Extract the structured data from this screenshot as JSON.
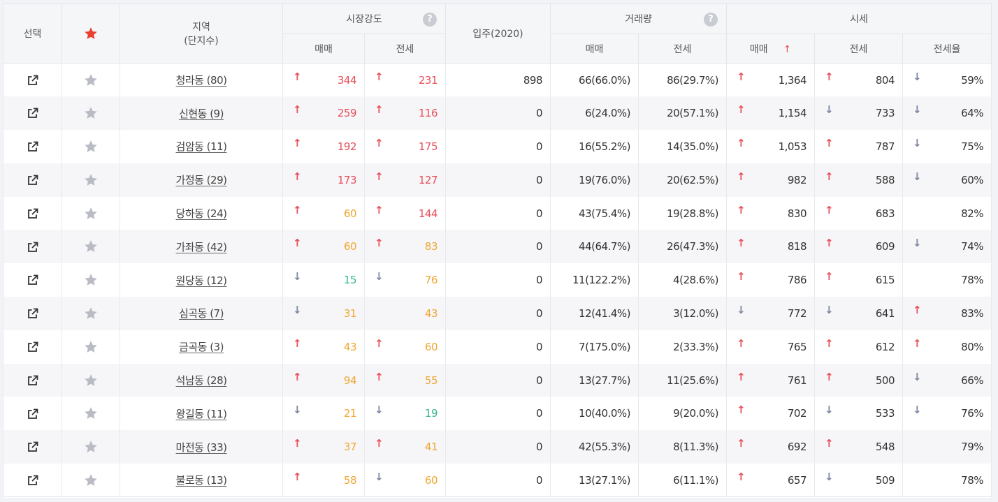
{
  "headers": {
    "select": "선택",
    "region_line1": "지역",
    "region_line2": "(단지수)",
    "market_strength": "시장강도",
    "move_in": "입주(2020)",
    "volume": "거래량",
    "price": "시세",
    "buy": "매매",
    "jeonse": "전세",
    "jeonse_rate": "전세율",
    "help": "?",
    "sort_arrow": "↑"
  },
  "colors": {
    "up": "#e84f5a",
    "down": "#7d86a0",
    "red": "#e84f5a",
    "orange": "#f0a630",
    "green": "#33b98a"
  },
  "rows": [
    {
      "region": "청라동 (80)",
      "ms_buy": {
        "dir": "up",
        "val": "344",
        "color": "red"
      },
      "ms_jeonse": {
        "dir": "up",
        "val": "231",
        "color": "red"
      },
      "move_in": "898",
      "vol_buy": "66(66.0%)",
      "vol_jeonse": "86(29.7%)",
      "price_buy": {
        "dir": "up",
        "val": "1,364"
      },
      "price_jeonse": {
        "dir": "up",
        "val": "804"
      },
      "rate": {
        "dir": "down",
        "val": "59%"
      }
    },
    {
      "region": "신현동 (9)",
      "ms_buy": {
        "dir": "up",
        "val": "259",
        "color": "red"
      },
      "ms_jeonse": {
        "dir": "up",
        "val": "116",
        "color": "red"
      },
      "move_in": "0",
      "vol_buy": "6(24.0%)",
      "vol_jeonse": "20(57.1%)",
      "price_buy": {
        "dir": "up",
        "val": "1,154"
      },
      "price_jeonse": {
        "dir": "down",
        "val": "733"
      },
      "rate": {
        "dir": "down",
        "val": "64%"
      }
    },
    {
      "region": "검암동 (11)",
      "ms_buy": {
        "dir": "up",
        "val": "192",
        "color": "red"
      },
      "ms_jeonse": {
        "dir": "up",
        "val": "175",
        "color": "red"
      },
      "move_in": "0",
      "vol_buy": "16(55.2%)",
      "vol_jeonse": "14(35.0%)",
      "price_buy": {
        "dir": "up",
        "val": "1,053"
      },
      "price_jeonse": {
        "dir": "up",
        "val": "787"
      },
      "rate": {
        "dir": "down",
        "val": "75%"
      }
    },
    {
      "region": "가정동 (29)",
      "ms_buy": {
        "dir": "up",
        "val": "173",
        "color": "red"
      },
      "ms_jeonse": {
        "dir": "up",
        "val": "127",
        "color": "red"
      },
      "move_in": "0",
      "vol_buy": "19(76.0%)",
      "vol_jeonse": "20(62.5%)",
      "price_buy": {
        "dir": "up",
        "val": "982"
      },
      "price_jeonse": {
        "dir": "up",
        "val": "588"
      },
      "rate": {
        "dir": "down",
        "val": "60%"
      }
    },
    {
      "region": "당하동 (24)",
      "ms_buy": {
        "dir": "up",
        "val": "60",
        "color": "orange"
      },
      "ms_jeonse": {
        "dir": "up",
        "val": "144",
        "color": "red"
      },
      "move_in": "0",
      "vol_buy": "43(75.4%)",
      "vol_jeonse": "19(28.8%)",
      "price_buy": {
        "dir": "up",
        "val": "830"
      },
      "price_jeonse": {
        "dir": "up",
        "val": "683"
      },
      "rate": {
        "dir": "",
        "val": "82%"
      }
    },
    {
      "region": "가좌동 (42)",
      "ms_buy": {
        "dir": "up",
        "val": "60",
        "color": "orange"
      },
      "ms_jeonse": {
        "dir": "up",
        "val": "83",
        "color": "orange"
      },
      "move_in": "0",
      "vol_buy": "44(64.7%)",
      "vol_jeonse": "26(47.3%)",
      "price_buy": {
        "dir": "up",
        "val": "818"
      },
      "price_jeonse": {
        "dir": "up",
        "val": "609"
      },
      "rate": {
        "dir": "down",
        "val": "74%"
      }
    },
    {
      "region": "원당동 (12)",
      "ms_buy": {
        "dir": "down",
        "val": "15",
        "color": "green"
      },
      "ms_jeonse": {
        "dir": "down",
        "val": "76",
        "color": "orange"
      },
      "move_in": "0",
      "vol_buy": "11(122.2%)",
      "vol_jeonse": "4(28.6%)",
      "price_buy": {
        "dir": "up",
        "val": "786"
      },
      "price_jeonse": {
        "dir": "up",
        "val": "615"
      },
      "rate": {
        "dir": "",
        "val": "78%"
      }
    },
    {
      "region": "심곡동 (7)",
      "ms_buy": {
        "dir": "down",
        "val": "31",
        "color": "orange"
      },
      "ms_jeonse": {
        "dir": "",
        "val": "43",
        "color": "orange"
      },
      "move_in": "0",
      "vol_buy": "12(41.4%)",
      "vol_jeonse": "3(12.0%)",
      "price_buy": {
        "dir": "down",
        "val": "772"
      },
      "price_jeonse": {
        "dir": "down",
        "val": "641"
      },
      "rate": {
        "dir": "up",
        "val": "83%"
      }
    },
    {
      "region": "금곡동 (3)",
      "ms_buy": {
        "dir": "up",
        "val": "43",
        "color": "orange"
      },
      "ms_jeonse": {
        "dir": "up",
        "val": "60",
        "color": "orange"
      },
      "move_in": "0",
      "vol_buy": "7(175.0%)",
      "vol_jeonse": "2(33.3%)",
      "price_buy": {
        "dir": "up",
        "val": "765"
      },
      "price_jeonse": {
        "dir": "up",
        "val": "612"
      },
      "rate": {
        "dir": "up",
        "val": "80%"
      }
    },
    {
      "region": "석남동 (28)",
      "ms_buy": {
        "dir": "up",
        "val": "94",
        "color": "orange"
      },
      "ms_jeonse": {
        "dir": "up",
        "val": "55",
        "color": "orange"
      },
      "move_in": "0",
      "vol_buy": "13(27.7%)",
      "vol_jeonse": "11(25.6%)",
      "price_buy": {
        "dir": "up",
        "val": "761"
      },
      "price_jeonse": {
        "dir": "up",
        "val": "500"
      },
      "rate": {
        "dir": "down",
        "val": "66%"
      }
    },
    {
      "region": "왕길동 (11)",
      "ms_buy": {
        "dir": "down",
        "val": "21",
        "color": "orange"
      },
      "ms_jeonse": {
        "dir": "down",
        "val": "19",
        "color": "green"
      },
      "move_in": "0",
      "vol_buy": "10(40.0%)",
      "vol_jeonse": "9(20.0%)",
      "price_buy": {
        "dir": "up",
        "val": "702"
      },
      "price_jeonse": {
        "dir": "down",
        "val": "533"
      },
      "rate": {
        "dir": "down",
        "val": "76%"
      }
    },
    {
      "region": "마전동 (33)",
      "ms_buy": {
        "dir": "up",
        "val": "37",
        "color": "orange"
      },
      "ms_jeonse": {
        "dir": "up",
        "val": "41",
        "color": "orange"
      },
      "move_in": "0",
      "vol_buy": "42(55.3%)",
      "vol_jeonse": "8(11.3%)",
      "price_buy": {
        "dir": "up",
        "val": "692"
      },
      "price_jeonse": {
        "dir": "up",
        "val": "548"
      },
      "rate": {
        "dir": "",
        "val": "79%"
      }
    },
    {
      "region": "불로동 (13)",
      "ms_buy": {
        "dir": "up",
        "val": "58",
        "color": "orange"
      },
      "ms_jeonse": {
        "dir": "down",
        "val": "60",
        "color": "orange"
      },
      "move_in": "0",
      "vol_buy": "13(27.1%)",
      "vol_jeonse": "6(11.1%)",
      "price_buy": {
        "dir": "up",
        "val": "657"
      },
      "price_jeonse": {
        "dir": "down",
        "val": "509"
      },
      "rate": {
        "dir": "",
        "val": "78%"
      }
    }
  ]
}
